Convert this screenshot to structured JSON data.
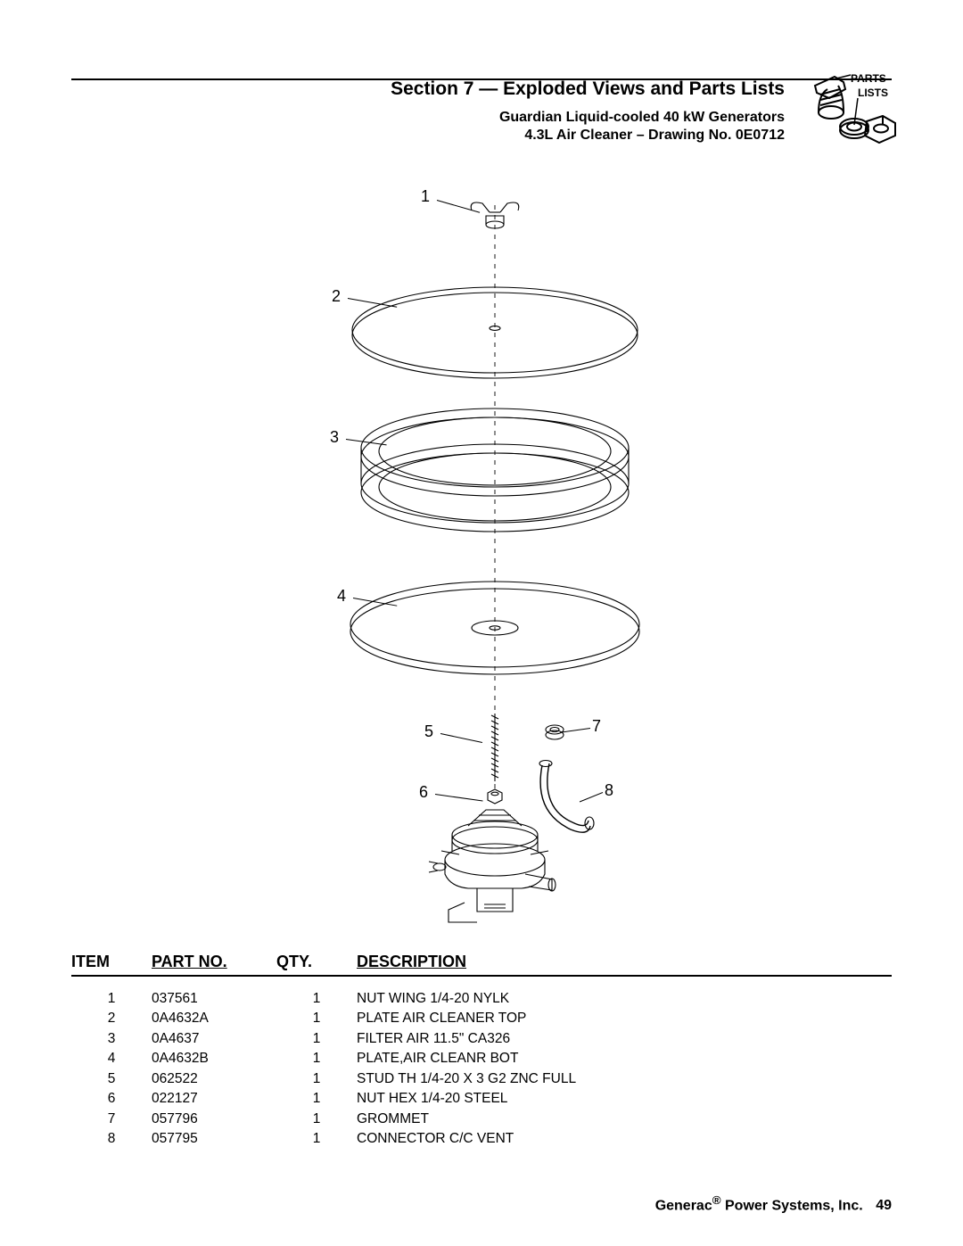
{
  "header": {
    "section_title": "Section 7 — Exploded Views and Parts Lists",
    "sub1": "Guardian Liquid-cooled 40 kW Generators",
    "sub2": "4.3L Air Cleaner – Drawing No. 0E0712",
    "icon_label_top": "PARTS",
    "icon_label_bot": "LISTS"
  },
  "diagram": {
    "stroke": "#000000",
    "stroke_width": 1.1,
    "callouts": [
      "1",
      "2",
      "3",
      "4",
      "5",
      "6",
      "7",
      "8"
    ]
  },
  "table": {
    "headers": {
      "item": "ITEM",
      "part": "PART NO.",
      "qty": "QTY.",
      "desc": "DESCRIPTION"
    },
    "rows": [
      {
        "item": "1",
        "part": "037561",
        "qty": "1",
        "desc": "NUT WING 1/4-20 NYLK"
      },
      {
        "item": "2",
        "part": "0A4632A",
        "qty": "1",
        "desc": "PLATE AIR CLEANER TOP"
      },
      {
        "item": "3",
        "part": "0A4637",
        "qty": "1",
        "desc": "FILTER AIR 11.5\" CA326"
      },
      {
        "item": "4",
        "part": "0A4632B",
        "qty": "1",
        "desc": "PLATE,AIR CLEANR BOT"
      },
      {
        "item": "5",
        "part": "062522",
        "qty": "1",
        "desc": "STUD TH 1/4-20 X 3 G2 ZNC FULL"
      },
      {
        "item": "6",
        "part": "022127",
        "qty": "1",
        "desc": "NUT HEX 1/4-20 STEEL"
      },
      {
        "item": "7",
        "part": "057796",
        "qty": "1",
        "desc": "GROMMET"
      },
      {
        "item": "8",
        "part": "057795",
        "qty": "1",
        "desc": "CONNECTOR C/C VENT"
      }
    ]
  },
  "footer": {
    "company_prefix": "Generac",
    "company_suffix": " Power Systems, Inc.",
    "reg": "®",
    "page": "49"
  },
  "colors": {
    "text": "#000000",
    "bg": "#ffffff"
  }
}
